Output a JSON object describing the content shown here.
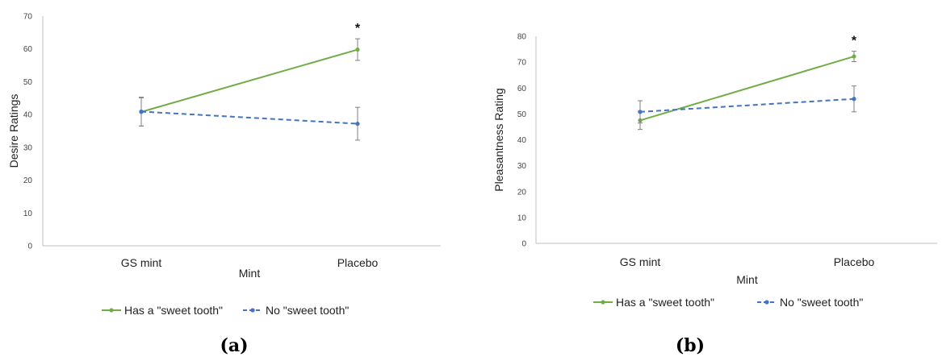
{
  "chart_data": [
    {
      "type": "line",
      "panel_label": "(a)",
      "categories": [
        "GS mint",
        "Placebo"
      ],
      "xlabel": "Mint",
      "ylabel": "Desire Ratings",
      "ylim": [
        0,
        70
      ],
      "yticks": [
        0,
        10,
        20,
        30,
        40,
        50,
        60,
        70
      ],
      "grid": false,
      "legend_position": "bottom",
      "series": [
        {
          "name": "Has a \"sweet tooth\"",
          "values": [
            40.8,
            59.8
          ],
          "errors": [
            4.3,
            3.3
          ],
          "color": "#70ad47",
          "dashed": false
        },
        {
          "name": "No \"sweet tooth\"",
          "values": [
            40.9,
            37.2
          ],
          "errors": [
            4.4,
            5.0
          ],
          "color": "#4472c4",
          "dashed": true
        }
      ],
      "annotations": [
        {
          "category": "Placebo",
          "text": "*"
        }
      ]
    },
    {
      "type": "line",
      "panel_label": "(b)",
      "categories": [
        "GS mint",
        "Placebo"
      ],
      "xlabel": "Mint",
      "ylabel": "Pleasantness Rating",
      "ylim": [
        0,
        80
      ],
      "yticks": [
        0,
        10,
        20,
        30,
        40,
        50,
        60,
        70,
        80
      ],
      "grid": false,
      "legend_position": "bottom",
      "series": [
        {
          "name": "Has a \"sweet tooth\"",
          "values": [
            47.5,
            72.2
          ],
          "errors": [
            3.5,
            2.0
          ],
          "color": "#70ad47",
          "dashed": false
        },
        {
          "name": "No \"sweet tooth\"",
          "values": [
            50.8,
            55.8
          ],
          "errors": [
            4.3,
            5.0
          ],
          "color": "#4472c4",
          "dashed": true
        }
      ],
      "annotations": [
        {
          "category": "Placebo",
          "text": "*"
        }
      ]
    }
  ]
}
